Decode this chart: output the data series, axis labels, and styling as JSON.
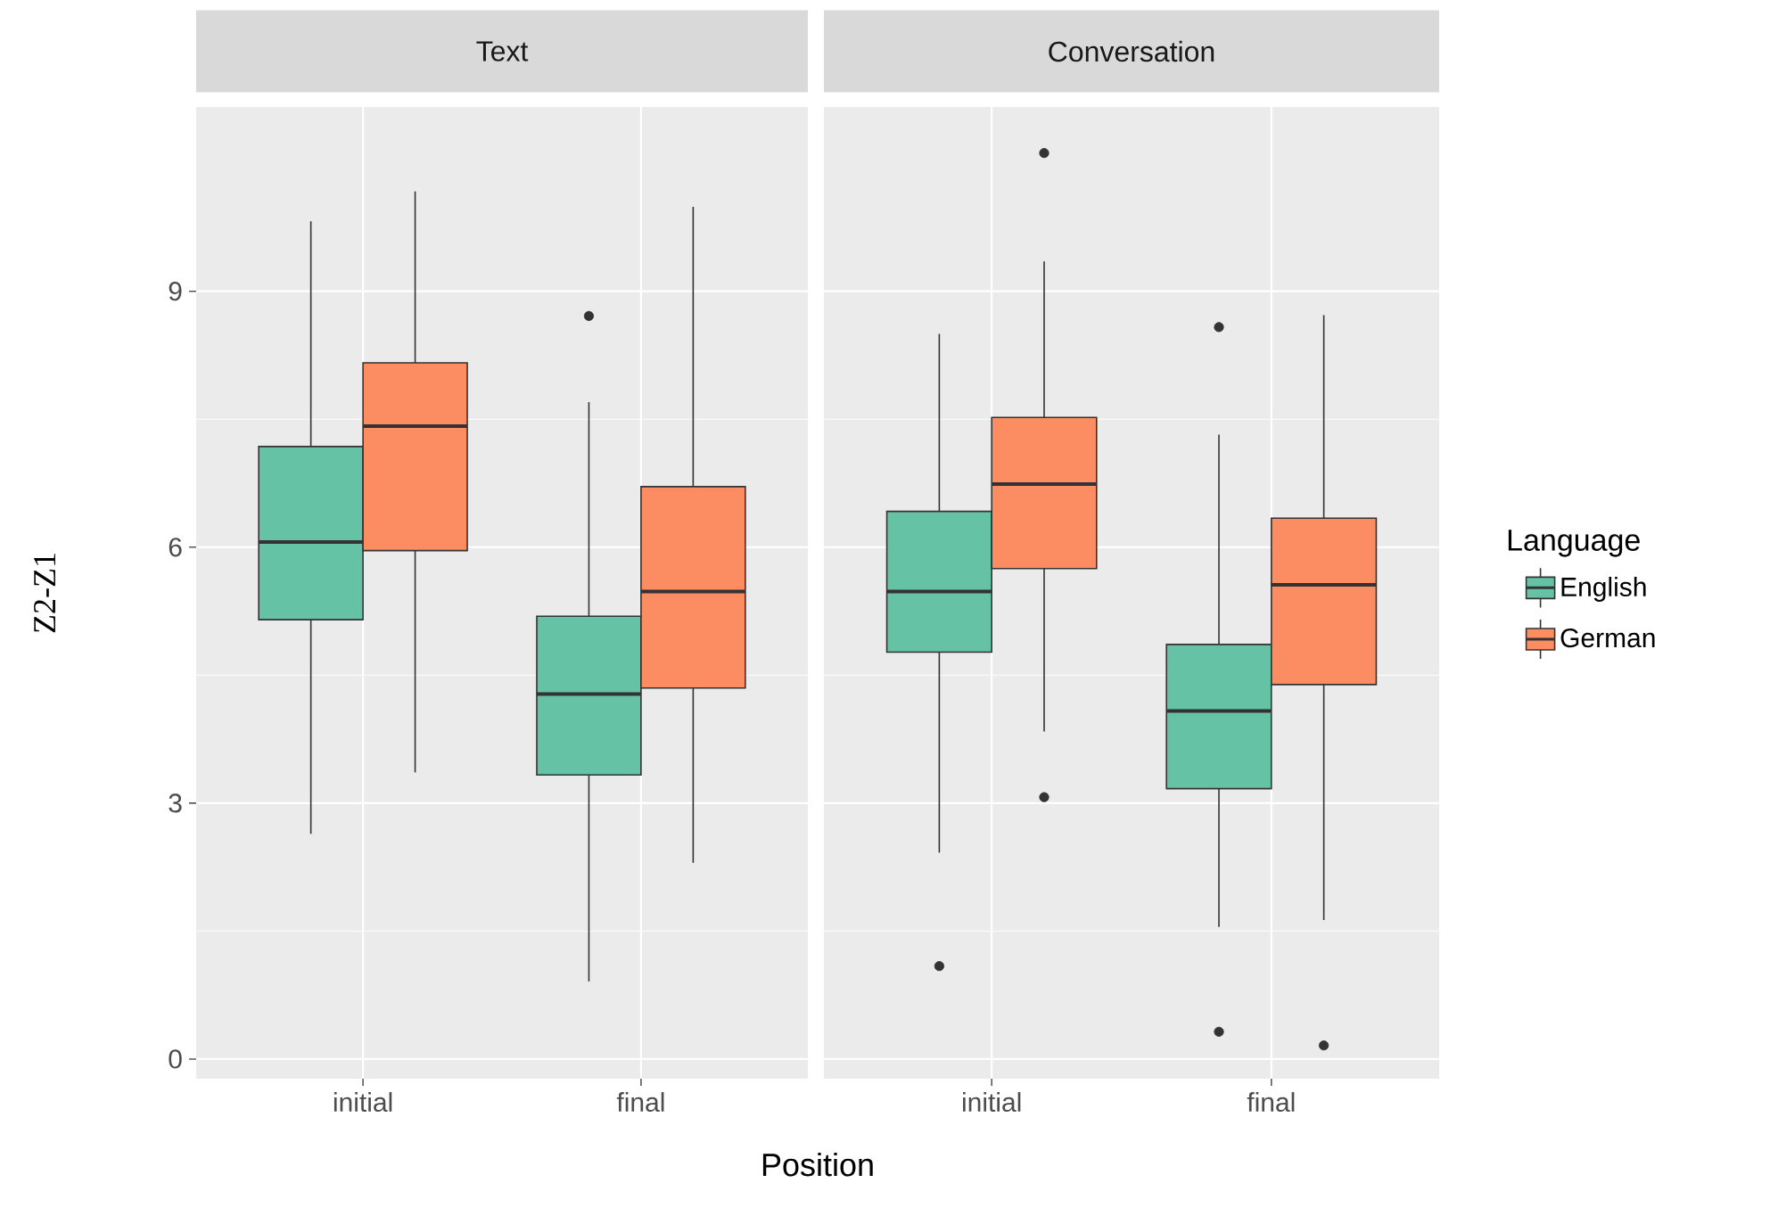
{
  "chart_data": [
    {
      "type": "box",
      "title": "Text",
      "xlabel": "Position",
      "ylabel": "Z2-Z1",
      "categories": [
        "initial",
        "final"
      ],
      "ylim": [
        -0.23,
        11.16
      ],
      "yticks": [
        0,
        3,
        6,
        9
      ],
      "grid": true,
      "series": [
        {
          "color": "#66c2a5",
          "boxes": [
            {
              "low": 2.64,
              "q1": 5.15,
              "median": 6.06,
              "q3": 7.18,
              "high": 9.82
            },
            {
              "low": 0.91,
              "q1": 3.33,
              "median": 4.28,
              "q3": 5.19,
              "high": 7.7,
              "outliers": [
                8.71
              ]
            }
          ]
        },
        {
          "color": "#fc8d62",
          "boxes": [
            {
              "low": 3.36,
              "q1": 5.96,
              "median": 7.42,
              "q3": 8.16,
              "high": 10.17
            },
            {
              "low": 2.3,
              "q1": 4.35,
              "median": 5.48,
              "q3": 6.71,
              "high": 9.99
            }
          ]
        }
      ]
    },
    {
      "type": "box",
      "title": "Conversation",
      "categories": [
        "initial",
        "final"
      ],
      "ylim": [
        -0.23,
        11.16
      ],
      "yticks": [
        0,
        3,
        6,
        9
      ],
      "grid": true,
      "tick_labels": "x",
      "legend": "right",
      "legend_title": "Language",
      "series": [
        {
          "name": "English",
          "color": "#66c2a5",
          "boxes": [
            {
              "low": 2.42,
              "q1": 4.77,
              "median": 5.48,
              "q3": 6.42,
              "high": 8.5,
              "outliers": [
                1.09
              ]
            },
            {
              "low": 1.55,
              "q1": 3.17,
              "median": 4.08,
              "q3": 4.86,
              "high": 7.32,
              "outliers": [
                8.58,
                0.32
              ]
            }
          ]
        },
        {
          "name": "German",
          "color": "#fc8d62",
          "boxes": [
            {
              "low": 3.84,
              "q1": 5.75,
              "median": 6.74,
              "q3": 7.52,
              "high": 9.35,
              "outliers": [
                10.62,
                3.07
              ]
            },
            {
              "low": 1.63,
              "q1": 4.39,
              "median": 5.56,
              "q3": 6.34,
              "high": 8.72,
              "outliers": [
                0.16
              ]
            }
          ]
        }
      ]
    }
  ]
}
